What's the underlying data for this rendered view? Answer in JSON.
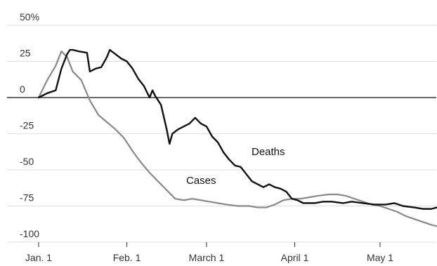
{
  "chart_data": {
    "type": "line",
    "title": "",
    "xlabel": "",
    "ylabel": "",
    "ylim": [
      -100,
      50
    ],
    "y_ticks": [
      {
        "value": 50,
        "label": "50%"
      },
      {
        "value": 25,
        "label": "25"
      },
      {
        "value": 0,
        "label": "0"
      },
      {
        "value": -25,
        "label": "-25"
      },
      {
        "value": -50,
        "label": "-50"
      },
      {
        "value": -75,
        "label": "-75"
      },
      {
        "value": -100,
        "label": "-100"
      }
    ],
    "x_ticks": [
      {
        "value": 0,
        "label": "Jan. 1"
      },
      {
        "value": 31,
        "label": "Feb. 1"
      },
      {
        "value": 59,
        "label": "March 1"
      },
      {
        "value": 90,
        "label": "April 1"
      },
      {
        "value": 120,
        "label": "May 1"
      }
    ],
    "grid": true,
    "zero_line": true,
    "legend": "inline labels",
    "series": [
      {
        "name": "Deaths",
        "color": "#111111",
        "points": [
          [
            0,
            0
          ],
          [
            3,
            3
          ],
          [
            6,
            5
          ],
          [
            8,
            20
          ],
          [
            10,
            30
          ],
          [
            11,
            33
          ],
          [
            12,
            33
          ],
          [
            14,
            32
          ],
          [
            17,
            31
          ],
          [
            18,
            18
          ],
          [
            20,
            20
          ],
          [
            22,
            21
          ],
          [
            24,
            28
          ],
          [
            25,
            33
          ],
          [
            27,
            30
          ],
          [
            29,
            27
          ],
          [
            31,
            25
          ],
          [
            33,
            20
          ],
          [
            35,
            13
          ],
          [
            37,
            8
          ],
          [
            39,
            0
          ],
          [
            40,
            5
          ],
          [
            41,
            1
          ],
          [
            43,
            -5
          ],
          [
            45,
            -22
          ],
          [
            46,
            -32
          ],
          [
            47,
            -25
          ],
          [
            49,
            -22
          ],
          [
            51,
            -20
          ],
          [
            53,
            -18
          ],
          [
            55,
            -14
          ],
          [
            57,
            -18
          ],
          [
            59,
            -20
          ],
          [
            61,
            -27
          ],
          [
            63,
            -31
          ],
          [
            65,
            -38
          ],
          [
            67,
            -43
          ],
          [
            69,
            -47
          ],
          [
            71,
            -48
          ],
          [
            73,
            -53
          ],
          [
            75,
            -58
          ],
          [
            77,
            -60
          ],
          [
            79,
            -62
          ],
          [
            81,
            -60
          ],
          [
            83,
            -62
          ],
          [
            85,
            -63
          ],
          [
            87,
            -65
          ],
          [
            89,
            -70
          ],
          [
            91,
            -71
          ],
          [
            93,
            -73
          ],
          [
            97,
            -73
          ],
          [
            100,
            -72
          ],
          [
            103,
            -72
          ],
          [
            107,
            -73
          ],
          [
            110,
            -72
          ],
          [
            114,
            -73
          ],
          [
            118,
            -74
          ],
          [
            122,
            -74
          ],
          [
            125,
            -73
          ],
          [
            128,
            -75
          ],
          [
            132,
            -76
          ],
          [
            135,
            -77
          ],
          [
            138,
            -77
          ],
          [
            140,
            -76
          ]
        ]
      },
      {
        "name": "Cases",
        "color": "#888888",
        "points": [
          [
            0,
            0
          ],
          [
            3,
            12
          ],
          [
            6,
            22
          ],
          [
            8,
            32
          ],
          [
            10,
            28
          ],
          [
            12,
            18
          ],
          [
            15,
            12
          ],
          [
            18,
            -2
          ],
          [
            21,
            -12
          ],
          [
            24,
            -17
          ],
          [
            27,
            -22
          ],
          [
            30,
            -28
          ],
          [
            33,
            -37
          ],
          [
            36,
            -45
          ],
          [
            39,
            -52
          ],
          [
            42,
            -58
          ],
          [
            45,
            -64
          ],
          [
            48,
            -70
          ],
          [
            51,
            -71
          ],
          [
            54,
            -70
          ],
          [
            57,
            -71
          ],
          [
            60,
            -72
          ],
          [
            63,
            -73
          ],
          [
            66,
            -74
          ],
          [
            70,
            -75
          ],
          [
            74,
            -75
          ],
          [
            77,
            -76
          ],
          [
            80,
            -76
          ],
          [
            83,
            -74
          ],
          [
            86,
            -71
          ],
          [
            89,
            -70
          ],
          [
            92,
            -70
          ],
          [
            95,
            -69
          ],
          [
            98,
            -68
          ],
          [
            102,
            -67
          ],
          [
            105,
            -67
          ],
          [
            108,
            -68
          ],
          [
            111,
            -70
          ],
          [
            114,
            -72
          ],
          [
            117,
            -74
          ],
          [
            120,
            -75
          ],
          [
            123,
            -77
          ],
          [
            126,
            -79
          ],
          [
            129,
            -82
          ],
          [
            132,
            -84
          ],
          [
            135,
            -86
          ],
          [
            138,
            -88
          ],
          [
            140,
            -89
          ]
        ]
      }
    ]
  }
}
